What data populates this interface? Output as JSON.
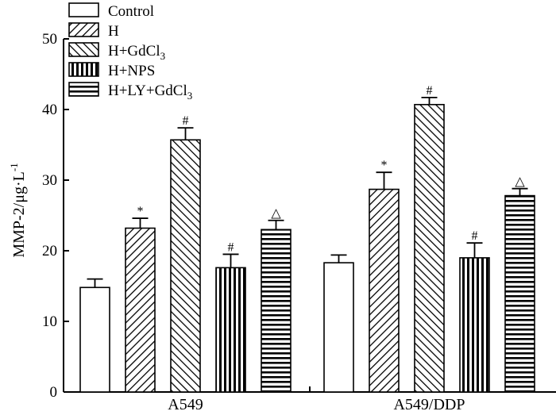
{
  "chart_data": {
    "type": "bar",
    "categories": [
      "A549",
      "A549/DDP"
    ],
    "ylabel": "MMP-2/μg·L⁻¹",
    "ylabel_parts": {
      "base": "MMP-2/μg·L",
      "sup": "-1"
    },
    "ylim": [
      0,
      50
    ],
    "yticks": [
      0,
      10,
      20,
      30,
      40,
      50
    ],
    "xlabel": "",
    "grid": false,
    "legend_position": "top-left",
    "series": [
      {
        "name": "Control",
        "name_parts": {
          "base": "Control",
          "sub": ""
        },
        "pattern": "none",
        "values": [
          14.8,
          18.3
        ],
        "errors": [
          1.2,
          1.1
        ],
        "markers": [
          "",
          ""
        ]
      },
      {
        "name": "H",
        "name_parts": {
          "base": "H",
          "sub": ""
        },
        "pattern": "diag-back",
        "values": [
          23.2,
          28.7
        ],
        "errors": [
          1.4,
          2.4
        ],
        "markers": [
          "*",
          "*"
        ]
      },
      {
        "name": "H+GdCl3",
        "name_parts": {
          "base": "H+GdCl",
          "sub": "3"
        },
        "pattern": "diag-fwd",
        "values": [
          35.7,
          40.7
        ],
        "errors": [
          1.7,
          1.0
        ],
        "markers": [
          "#",
          "#"
        ]
      },
      {
        "name": "H+NPS",
        "name_parts": {
          "base": "H+NPS",
          "sub": ""
        },
        "pattern": "vertical",
        "values": [
          17.6,
          19.0
        ],
        "errors": [
          1.9,
          2.1
        ],
        "markers": [
          "#",
          "#"
        ]
      },
      {
        "name": "H+LY+GdCl3",
        "name_parts": {
          "base": "H+LY+GdCl",
          "sub": "3"
        },
        "pattern": "horizontal",
        "values": [
          23.0,
          27.8
        ],
        "errors": [
          1.3,
          1.0
        ],
        "markers": [
          "△",
          "△"
        ]
      }
    ]
  }
}
